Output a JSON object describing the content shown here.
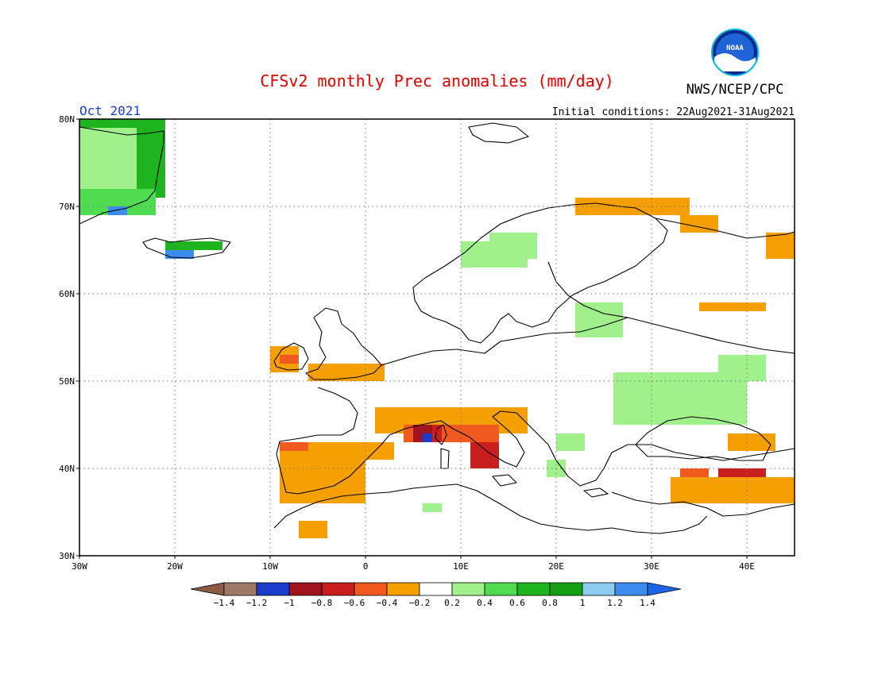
{
  "header": {
    "title": "CFSv2 monthly Prec anomalies (mm/day)",
    "agency": "NWS/NCEP/CPC",
    "logo_text": "NOAA",
    "month": "Oct 2021",
    "initial_conditions": "Initial conditions: 22Aug2021-31Aug2021"
  },
  "map": {
    "lon_range": [
      -30,
      45
    ],
    "lat_range": [
      30,
      80
    ],
    "grid": "dotted",
    "lat_labels": [
      "30N",
      "40N",
      "50N",
      "60N",
      "70N",
      "80N"
    ],
    "lon_labels": [
      "30W",
      "20W",
      "10W",
      "0",
      "10E",
      "20E",
      "30E",
      "40E"
    ]
  },
  "legend": {
    "tick_labels": [
      "-1.4",
      "-1.2",
      "-1",
      "-0.8",
      "-0.6",
      "-0.4",
      "-0.2",
      "0.2",
      "0.4",
      "0.6",
      "0.8",
      "1",
      "1.2",
      "1.4"
    ],
    "colors": {
      "below_-1.4": "#8a5a44",
      "-1.4_-1.2": "#a07868",
      "-1.2_-1": "#1e3ccc",
      "-1_-0.8": "#a0141e",
      "-0.8_-0.6": "#c81e1e",
      "-0.6_-0.4": "#f05a1e",
      "-0.4_-0.2": "#f5a000",
      "-0.2_0.2": "#ffffff",
      "0.2_0.4": "#a0f08c",
      "0.4_0.6": "#50dc50",
      "0.6_0.8": "#1eb41e",
      "0.8_1": "#14a014",
      "1_1.2": "#8ccaf0",
      "1.2_1.4": "#3c8cf0",
      "above_1.4": "#1e64e6"
    }
  },
  "anomaly_regions": [
    {
      "color": "0.6_0.8",
      "lon": [
        -30,
        -21
      ],
      "lat": [
        71,
        80
      ]
    },
    {
      "color": "0.2_0.4",
      "lon": [
        -30,
        -24
      ],
      "lat": [
        72,
        79
      ]
    },
    {
      "color": "0.4_0.6",
      "lon": [
        -30,
        -22
      ],
      "lat": [
        69,
        72
      ]
    },
    {
      "color": "1.2_1.4",
      "lon": [
        -27,
        -25
      ],
      "lat": [
        69,
        70
      ]
    },
    {
      "color": "0.6_0.8",
      "lon": [
        -21,
        -15
      ],
      "lat": [
        65,
        66
      ]
    },
    {
      "color": "1.2_1.4",
      "lon": [
        -21,
        -18
      ],
      "lat": [
        64,
        65
      ]
    },
    {
      "color": "0.2_0.4",
      "lon": [
        10,
        17
      ],
      "lat": [
        63,
        66
      ]
    },
    {
      "color": "0.2_0.4",
      "lon": [
        13,
        18
      ],
      "lat": [
        64,
        67
      ]
    },
    {
      "color": "0.2_0.4",
      "lon": [
        22,
        27
      ],
      "lat": [
        55,
        59
      ]
    },
    {
      "color": "0.2_0.4",
      "lon": [
        26,
        40
      ],
      "lat": [
        45,
        51
      ]
    },
    {
      "color": "0.2_0.4",
      "lon": [
        37,
        42
      ],
      "lat": [
        50,
        53
      ]
    },
    {
      "color": "0.2_0.4",
      "lon": [
        19,
        21
      ],
      "lat": [
        39,
        41
      ]
    },
    {
      "color": "0.2_0.4",
      "lon": [
        20,
        23
      ],
      "lat": [
        42,
        44
      ]
    },
    {
      "color": "0.2_0.4",
      "lon": [
        6,
        8
      ],
      "lat": [
        35,
        36
      ]
    },
    {
      "color": "-0.4_-0.2",
      "lon": [
        22,
        34
      ],
      "lat": [
        69,
        71
      ]
    },
    {
      "color": "-0.4_-0.2",
      "lon": [
        33,
        37
      ],
      "lat": [
        67,
        69
      ]
    },
    {
      "color": "-0.4_-0.2",
      "lon": [
        42,
        45
      ],
      "lat": [
        64,
        67
      ]
    },
    {
      "color": "-0.4_-0.2",
      "lon": [
        35,
        42
      ],
      "lat": [
        58,
        59
      ]
    },
    {
      "color": "-0.4_-0.2",
      "lon": [
        -10,
        -7
      ],
      "lat": [
        51,
        54
      ]
    },
    {
      "color": "-0.6_-0.4",
      "lon": [
        -9,
        -7
      ],
      "lat": [
        52,
        53
      ]
    },
    {
      "color": "-0.4_-0.2",
      "lon": [
        -6,
        2
      ],
      "lat": [
        50,
        52
      ]
    },
    {
      "color": "-0.4_-0.2",
      "lon": [
        -9,
        0
      ],
      "lat": [
        36,
        43
      ]
    },
    {
      "color": "-0.4_-0.2",
      "lon": [
        -1,
        3
      ],
      "lat": [
        41,
        43
      ]
    },
    {
      "color": "-0.4_-0.2",
      "lon": [
        1,
        17
      ],
      "lat": [
        44,
        47
      ]
    },
    {
      "color": "-0.4_-0.2",
      "lon": [
        -7,
        -4
      ],
      "lat": [
        32,
        34
      ]
    },
    {
      "color": "-0.4_-0.2",
      "lon": [
        32,
        45
      ],
      "lat": [
        36,
        39
      ]
    },
    {
      "color": "-0.4_-0.2",
      "lon": [
        38,
        43
      ],
      "lat": [
        42,
        44
      ]
    },
    {
      "color": "-0.6_-0.4",
      "lon": [
        -9,
        -6
      ],
      "lat": [
        42,
        43
      ]
    },
    {
      "color": "-0.6_-0.4",
      "lon": [
        4,
        14
      ],
      "lat": [
        43,
        45
      ]
    },
    {
      "color": "-0.6_-0.4",
      "lon": [
        33,
        36
      ],
      "lat": [
        39,
        40
      ]
    },
    {
      "color": "-0.8_-0.6",
      "lon": [
        6,
        8
      ],
      "lat": [
        43,
        45
      ]
    },
    {
      "color": "-0.8_-0.6",
      "lon": [
        11,
        14
      ],
      "lat": [
        40,
        43
      ]
    },
    {
      "color": "-0.8_-0.6",
      "lon": [
        37,
        42
      ],
      "lat": [
        39,
        40
      ]
    },
    {
      "color": "-1_-0.8",
      "lon": [
        5,
        7
      ],
      "lat": [
        43,
        45
      ]
    },
    {
      "color": "-1.2_-1",
      "lon": [
        6,
        7
      ],
      "lat": [
        43,
        44
      ]
    }
  ]
}
